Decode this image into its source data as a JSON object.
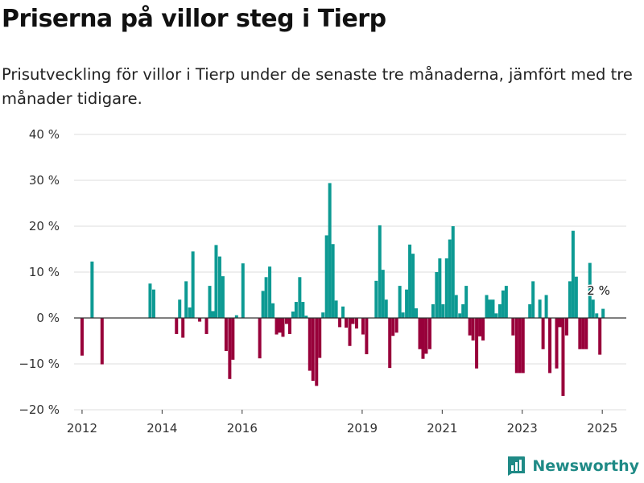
{
  "header": {
    "title": "Priserna på villor steg i Tierp",
    "subtitle": "Prisutveckling för villor i Tierp under de senaste tre månaderna, jämfört med tre månader tidigare."
  },
  "brand": {
    "name": "Newsworthy",
    "icon": "bar-chart-logo-icon"
  },
  "colors": {
    "positive": "#0d9a93",
    "negative": "#98003a",
    "grid": "#dddddd",
    "axis": "#333333"
  },
  "chart_data": {
    "type": "bar",
    "x_unit": "year",
    "y_unit": "%",
    "ylim": [
      -20,
      40
    ],
    "y_ticks": [
      -20,
      -10,
      0,
      10,
      20,
      30,
      40
    ],
    "y_tick_labels": [
      "−20 %",
      "−10 %",
      "0 %",
      "10 %",
      "20 %",
      "30 %",
      "40 %"
    ],
    "xlim": [
      2011.8,
      2025.6
    ],
    "x_ticks": [
      2012,
      2014,
      2016,
      2019,
      2021,
      2023,
      2025
    ],
    "x_tick_labels": [
      "2012",
      "2014",
      "2016",
      "2019",
      "2021",
      "2023",
      "2025"
    ],
    "grid": true,
    "annotation": {
      "x": 2024.62,
      "y": 6,
      "label": "2 %"
    },
    "points": [
      {
        "x": 2012.0,
        "y": -8.2
      },
      {
        "x": 2012.25,
        "y": 12.3
      },
      {
        "x": 2012.5,
        "y": -10.1
      },
      {
        "x": 2013.7,
        "y": 7.5
      },
      {
        "x": 2013.79,
        "y": 6.2
      },
      {
        "x": 2014.36,
        "y": -3.5
      },
      {
        "x": 2014.44,
        "y": 4.0
      },
      {
        "x": 2014.52,
        "y": -4.3
      },
      {
        "x": 2014.6,
        "y": 8.0
      },
      {
        "x": 2014.69,
        "y": 2.3
      },
      {
        "x": 2014.77,
        "y": 14.5
      },
      {
        "x": 2014.94,
        "y": -0.8
      },
      {
        "x": 2015.11,
        "y": -3.5
      },
      {
        "x": 2015.19,
        "y": 7.0
      },
      {
        "x": 2015.27,
        "y": 1.5
      },
      {
        "x": 2015.35,
        "y": 15.9
      },
      {
        "x": 2015.44,
        "y": 13.4
      },
      {
        "x": 2015.52,
        "y": 9.1
      },
      {
        "x": 2015.6,
        "y": -7.2
      },
      {
        "x": 2015.69,
        "y": -13.3
      },
      {
        "x": 2015.77,
        "y": -9.1
      },
      {
        "x": 2015.86,
        "y": 0.6
      },
      {
        "x": 2016.02,
        "y": 11.9
      },
      {
        "x": 2016.44,
        "y": -8.8
      },
      {
        "x": 2016.52,
        "y": 5.9
      },
      {
        "x": 2016.6,
        "y": 8.9
      },
      {
        "x": 2016.69,
        "y": 11.2
      },
      {
        "x": 2016.77,
        "y": 3.2
      },
      {
        "x": 2016.86,
        "y": -3.6
      },
      {
        "x": 2016.94,
        "y": -3.2
      },
      {
        "x": 2017.02,
        "y": -4.1
      },
      {
        "x": 2017.11,
        "y": -1.3
      },
      {
        "x": 2017.19,
        "y": -3.5
      },
      {
        "x": 2017.27,
        "y": 1.4
      },
      {
        "x": 2017.35,
        "y": 3.5
      },
      {
        "x": 2017.44,
        "y": 8.9
      },
      {
        "x": 2017.52,
        "y": 3.5
      },
      {
        "x": 2017.6,
        "y": 0.5
      },
      {
        "x": 2017.69,
        "y": -11.5
      },
      {
        "x": 2017.77,
        "y": -13.7
      },
      {
        "x": 2017.86,
        "y": -14.8
      },
      {
        "x": 2017.94,
        "y": -8.7
      },
      {
        "x": 2018.02,
        "y": 1.2
      },
      {
        "x": 2018.11,
        "y": 18.0
      },
      {
        "x": 2018.19,
        "y": 29.4
      },
      {
        "x": 2018.27,
        "y": 16.1
      },
      {
        "x": 2018.35,
        "y": 3.8
      },
      {
        "x": 2018.44,
        "y": -2.0
      },
      {
        "x": 2018.52,
        "y": 2.5
      },
      {
        "x": 2018.6,
        "y": -2.1
      },
      {
        "x": 2018.69,
        "y": -6.1
      },
      {
        "x": 2018.77,
        "y": -1.3
      },
      {
        "x": 2018.86,
        "y": -2.3
      },
      {
        "x": 2019.02,
        "y": -3.6
      },
      {
        "x": 2019.11,
        "y": -7.9
      },
      {
        "x": 2019.35,
        "y": 8.1
      },
      {
        "x": 2019.44,
        "y": 20.2
      },
      {
        "x": 2019.52,
        "y": 10.5
      },
      {
        "x": 2019.6,
        "y": 4.0
      },
      {
        "x": 2019.69,
        "y": -10.9
      },
      {
        "x": 2019.77,
        "y": -3.9
      },
      {
        "x": 2019.86,
        "y": -3.2
      },
      {
        "x": 2019.94,
        "y": 7.0
      },
      {
        "x": 2020.02,
        "y": 1.2
      },
      {
        "x": 2020.11,
        "y": 6.2
      },
      {
        "x": 2020.19,
        "y": 16.0
      },
      {
        "x": 2020.27,
        "y": 14.0
      },
      {
        "x": 2020.35,
        "y": 2.1
      },
      {
        "x": 2020.44,
        "y": -6.8
      },
      {
        "x": 2020.52,
        "y": -8.9
      },
      {
        "x": 2020.6,
        "y": -7.8
      },
      {
        "x": 2020.69,
        "y": -6.8
      },
      {
        "x": 2020.77,
        "y": 3.0
      },
      {
        "x": 2020.86,
        "y": 10.0
      },
      {
        "x": 2020.94,
        "y": 13.0
      },
      {
        "x": 2021.02,
        "y": 3.0
      },
      {
        "x": 2021.11,
        "y": 13.0
      },
      {
        "x": 2021.19,
        "y": 17.1
      },
      {
        "x": 2021.27,
        "y": 20.0
      },
      {
        "x": 2021.35,
        "y": 5.0
      },
      {
        "x": 2021.44,
        "y": 1.0
      },
      {
        "x": 2021.52,
        "y": 3.0
      },
      {
        "x": 2021.6,
        "y": 7.0
      },
      {
        "x": 2021.69,
        "y": -3.8
      },
      {
        "x": 2021.77,
        "y": -4.9
      },
      {
        "x": 2021.86,
        "y": -11.0
      },
      {
        "x": 2021.94,
        "y": -4.0
      },
      {
        "x": 2022.02,
        "y": -4.9
      },
      {
        "x": 2022.11,
        "y": 5.0
      },
      {
        "x": 2022.19,
        "y": 4.0
      },
      {
        "x": 2022.27,
        "y": 4.0
      },
      {
        "x": 2022.35,
        "y": 1.0
      },
      {
        "x": 2022.44,
        "y": 3.0
      },
      {
        "x": 2022.52,
        "y": 6.0
      },
      {
        "x": 2022.6,
        "y": 7.0
      },
      {
        "x": 2022.77,
        "y": -3.8
      },
      {
        "x": 2022.86,
        "y": -12.0
      },
      {
        "x": 2022.94,
        "y": -12.0
      },
      {
        "x": 2023.02,
        "y": -12.0
      },
      {
        "x": 2023.19,
        "y": 3.0
      },
      {
        "x": 2023.27,
        "y": 8.0
      },
      {
        "x": 2023.44,
        "y": 4.0
      },
      {
        "x": 2023.52,
        "y": -6.8
      },
      {
        "x": 2023.6,
        "y": 5.0
      },
      {
        "x": 2023.69,
        "y": -12.0
      },
      {
        "x": 2023.86,
        "y": -11.0
      },
      {
        "x": 2023.94,
        "y": -2.0
      },
      {
        "x": 2024.02,
        "y": -17.0
      },
      {
        "x": 2024.11,
        "y": -3.8
      },
      {
        "x": 2024.19,
        "y": 8.0
      },
      {
        "x": 2024.27,
        "y": 19.0
      },
      {
        "x": 2024.35,
        "y": 9.0
      },
      {
        "x": 2024.44,
        "y": -6.8
      },
      {
        "x": 2024.52,
        "y": -6.8
      },
      {
        "x": 2024.6,
        "y": -6.8
      },
      {
        "x": 2024.69,
        "y": 12.0
      },
      {
        "x": 2024.77,
        "y": 4.0
      },
      {
        "x": 2024.86,
        "y": 1.0
      },
      {
        "x": 2024.94,
        "y": -8.0
      },
      {
        "x": 2025.02,
        "y": 2.0
      }
    ]
  }
}
